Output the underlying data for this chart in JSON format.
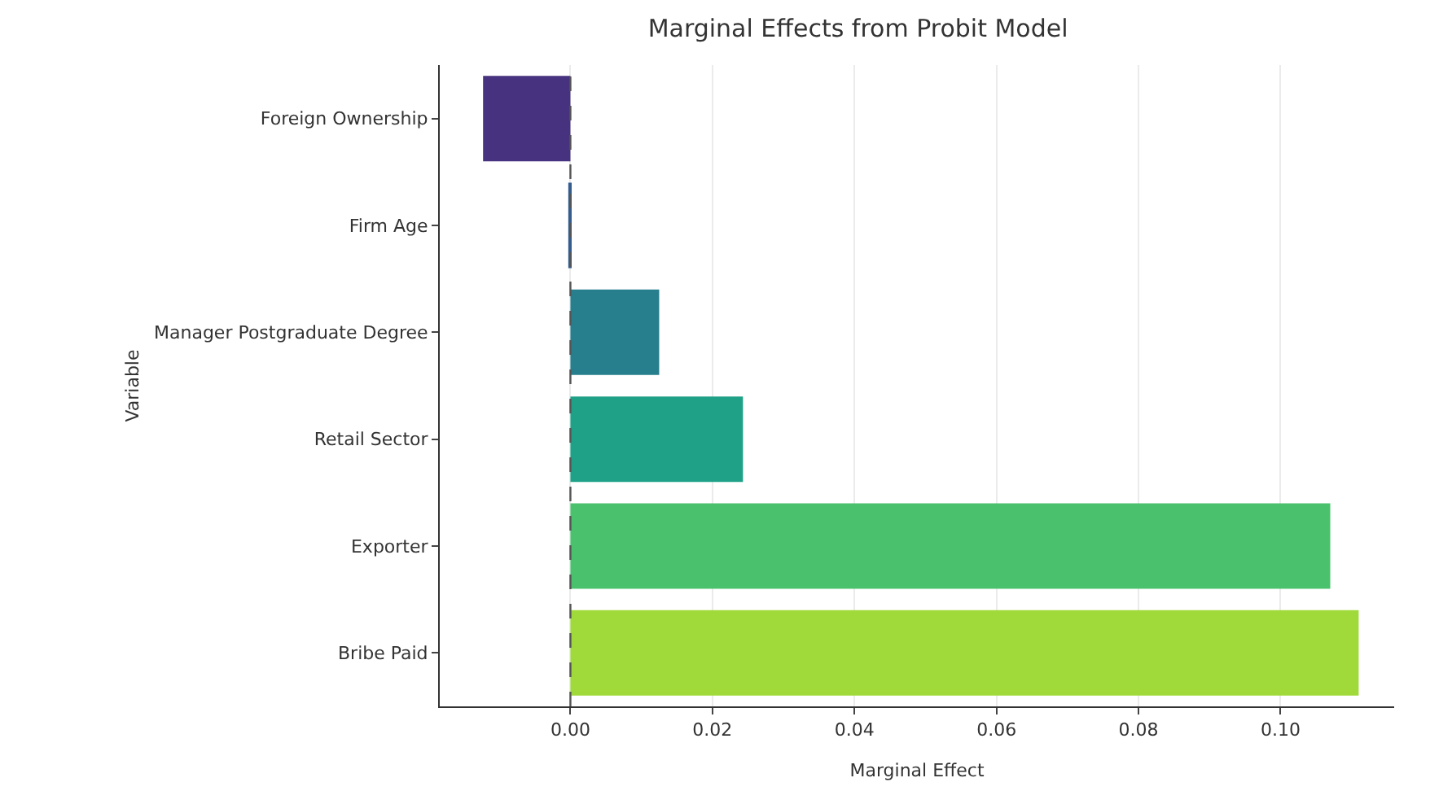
{
  "chart_data": {
    "type": "bar",
    "orientation": "horizontal",
    "title": "Marginal Effects from Probit Model",
    "xlabel": "Marginal Effect",
    "ylabel": "Variable",
    "categories": [
      "Foreign Ownership",
      "Firm Age",
      "Manager Postgraduate Degree",
      "Retail Sector",
      "Exporter",
      "Bribe Paid"
    ],
    "values": [
      -0.0123,
      -0.0003,
      0.0125,
      0.0243,
      0.107,
      0.111
    ],
    "colors": [
      "#46327e",
      "#365c8d",
      "#277f8e",
      "#1fa187",
      "#4ac16d",
      "#9fda3a"
    ],
    "xlim": [
      -0.0184,
      0.116
    ],
    "xticks": [
      {
        "value": 0,
        "label": "0.00"
      },
      {
        "value": 0.02,
        "label": "0.02"
      },
      {
        "value": 0.04,
        "label": "0.04"
      },
      {
        "value": 0.06,
        "label": "0.06"
      },
      {
        "value": 0.08,
        "label": "0.08"
      },
      {
        "value": 0.1,
        "label": "0.10"
      }
    ],
    "grid": "x",
    "ref_lines": [
      {
        "axis": "x",
        "value": 0,
        "color": "#555555",
        "line_style": "dashed"
      }
    ]
  }
}
